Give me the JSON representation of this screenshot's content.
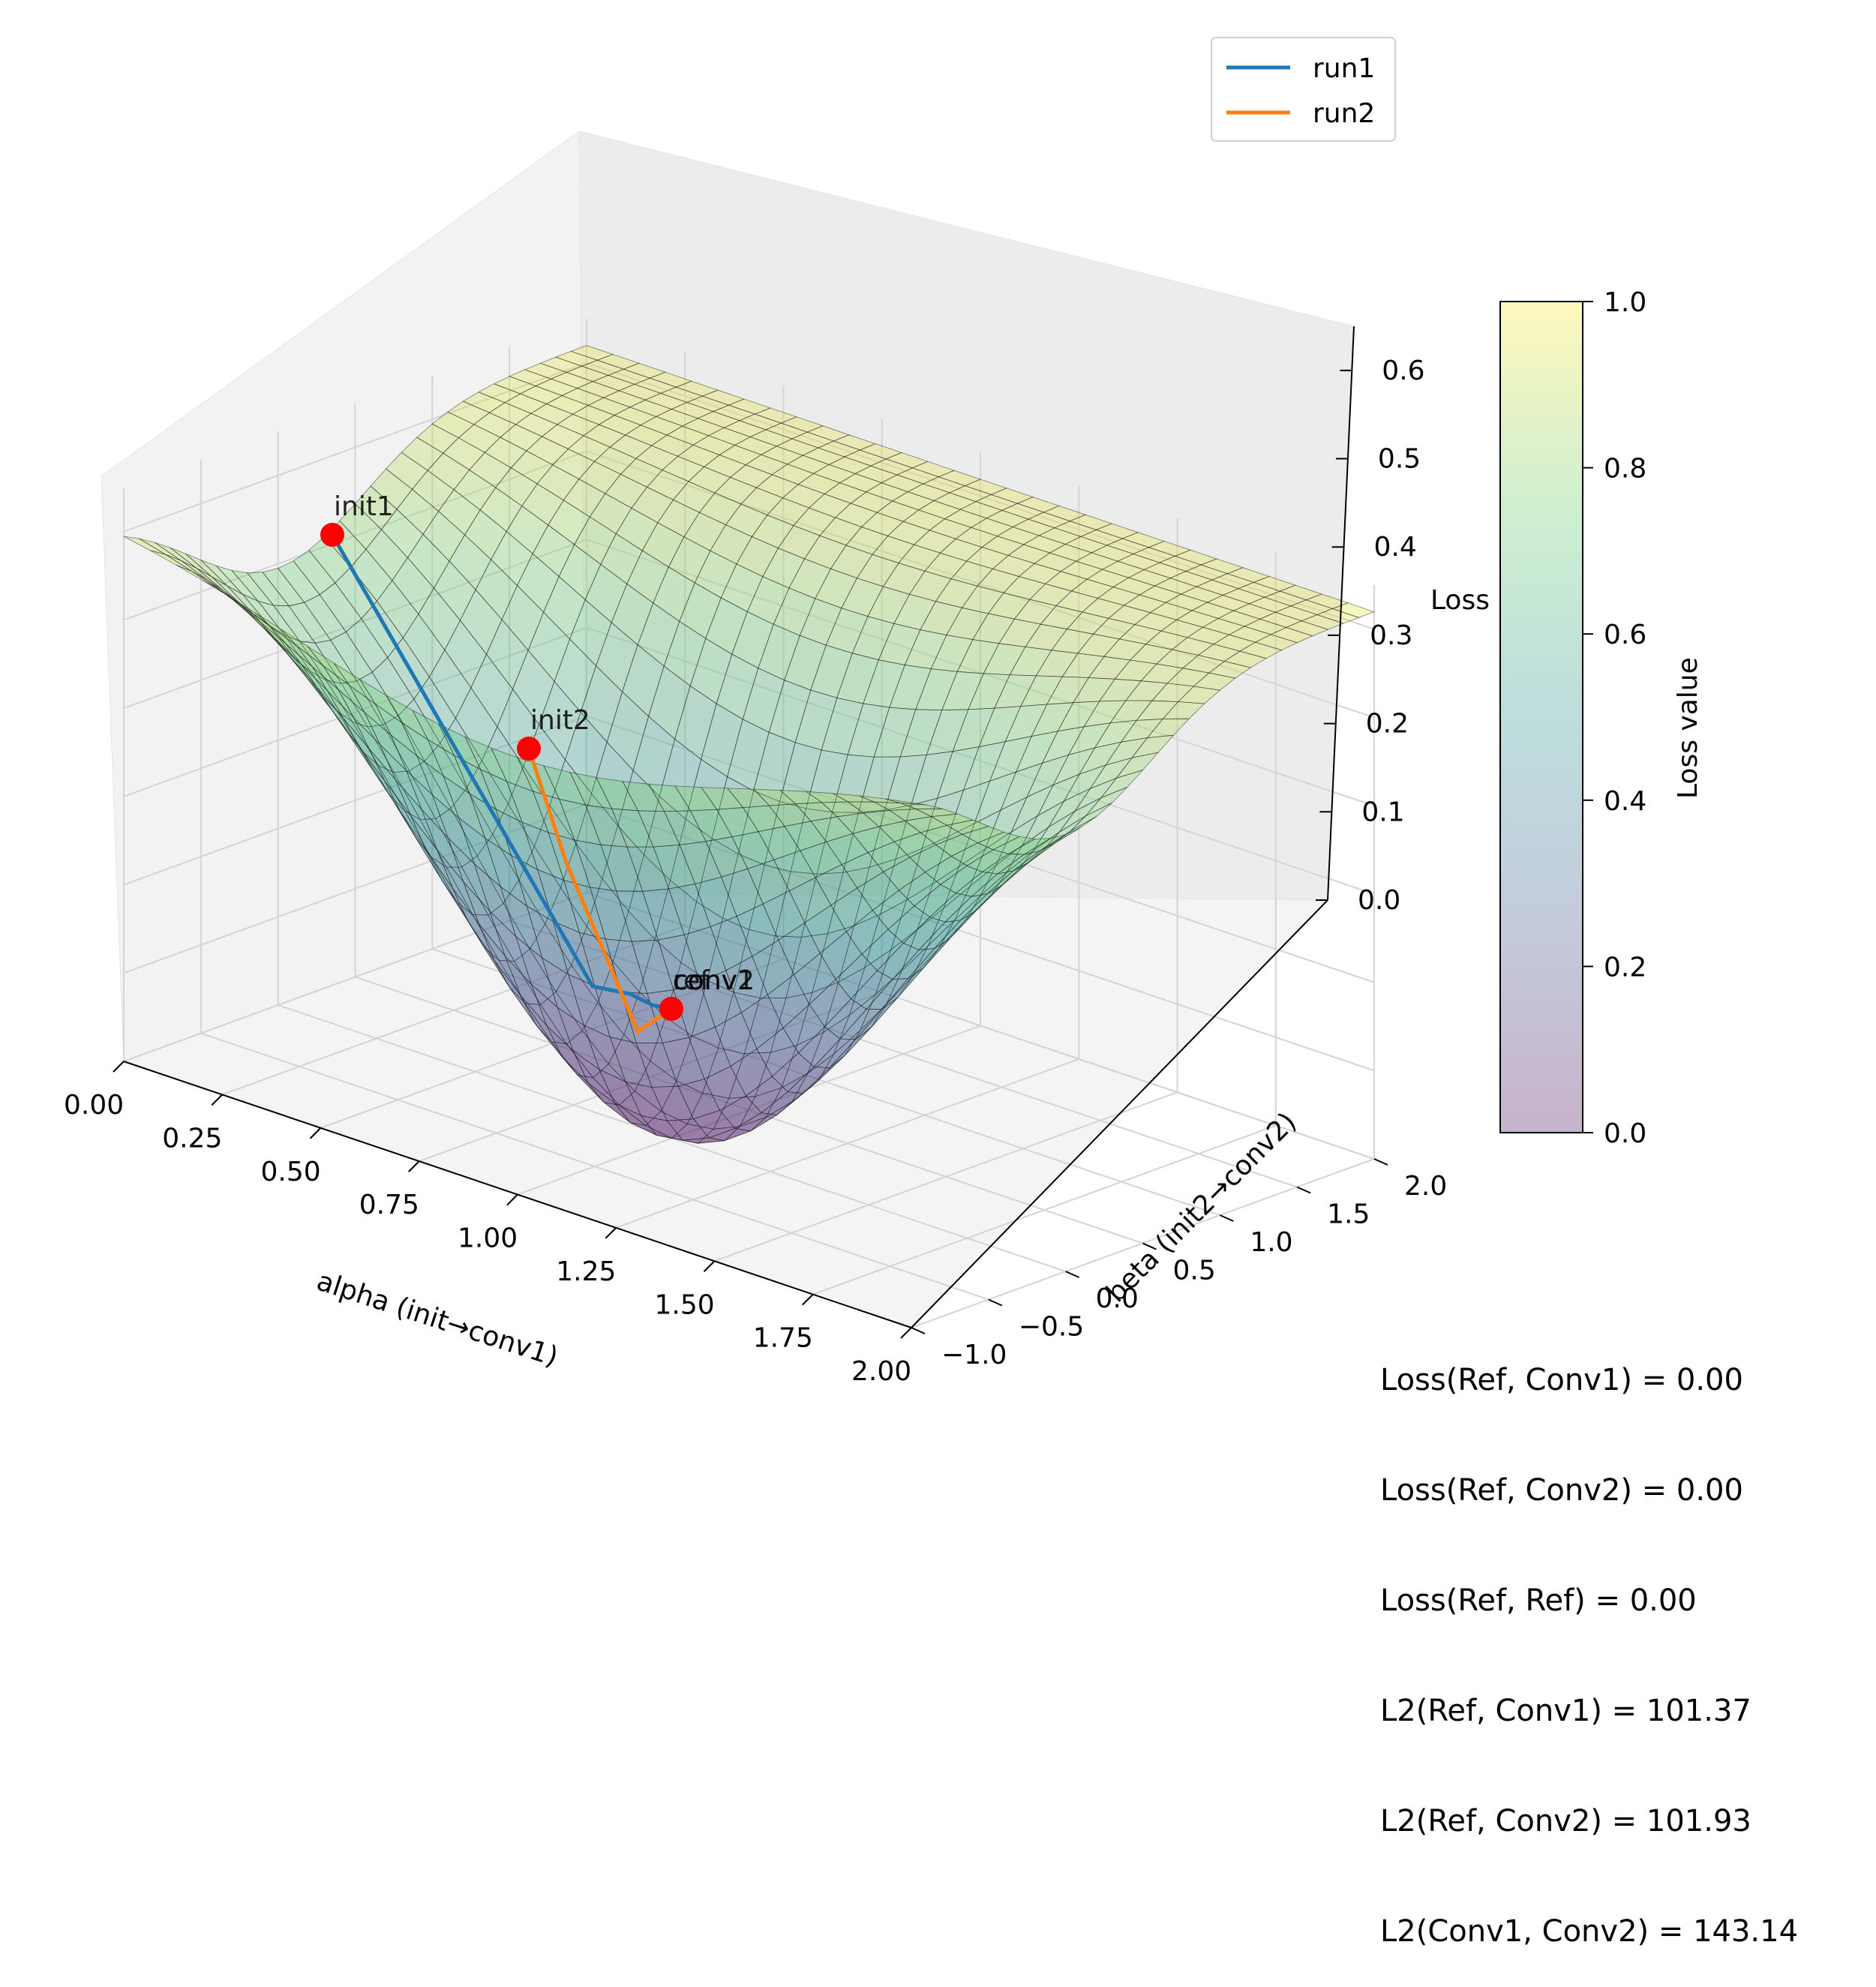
{
  "chart_data": {
    "type": "surface",
    "x_axis": {
      "label": "alpha (init→conv1)",
      "range": [
        0.0,
        2.0
      ],
      "ticks": [
        "0.00",
        "0.25",
        "0.50",
        "0.75",
        "1.00",
        "1.25",
        "1.50",
        "1.75",
        "2.00"
      ]
    },
    "y_axis": {
      "label": "beta (init2→conv2)",
      "range": [
        -1.0,
        2.0
      ],
      "ticks": [
        "−1.0",
        "−0.5",
        "0.0",
        "0.5",
        "1.0",
        "1.5",
        "2.0"
      ]
    },
    "z_axis": {
      "label": "Loss",
      "range": [
        0.0,
        0.65
      ],
      "ticks": [
        "0.0",
        "0.1",
        "0.2",
        "0.3",
        "0.4",
        "0.5",
        "0.6"
      ]
    },
    "colormap": "viridis",
    "colorbar": {
      "label": "Loss value",
      "range": [
        0.0,
        1.0
      ],
      "ticks": [
        "0.0",
        "0.2",
        "0.4",
        "0.6",
        "0.8",
        "1.0"
      ]
    },
    "surface": {
      "description_values": "loss surface with minimum at alpha=1.0, beta=0.0; corners high",
      "min_loss": 0.0,
      "max_loss": 0.62
    },
    "series": [
      {
        "name": "run1",
        "color": "#1f77b4",
        "points": [
          {
            "x": 0.0,
            "y": 0.0,
            "z": 0.52
          },
          {
            "x": 0.9,
            "y": 0.0,
            "z": 0.0
          },
          {
            "x": 0.97,
            "y": 0.0,
            "z": 0.0
          },
          {
            "x": 1.0,
            "y": 0.0,
            "z": 0.0
          }
        ]
      },
      {
        "name": "run2",
        "color": "#ff7f0e",
        "points": [
          {
            "x": 1.0,
            "y": 1.0,
            "z": 0.2
          },
          {
            "x": 1.0,
            "y": 0.05,
            "z": 0.0
          },
          {
            "x": 1.0,
            "y": 0.0,
            "z": 0.0
          }
        ]
      }
    ],
    "annotations": [
      {
        "label": "init1",
        "x": 0.0,
        "y": 0.0,
        "z": 0.52
      },
      {
        "label": "init2",
        "x": 1.0,
        "y": 1.0,
        "z": 0.2
      },
      {
        "label": "ref",
        "x": 1.0,
        "y": 0.0,
        "z": 0.0
      },
      {
        "label": "conv1",
        "x": 1.0,
        "y": 0.0,
        "z": 0.0
      },
      {
        "label": "conv2",
        "x": 1.0,
        "y": 0.0,
        "z": 0.0
      }
    ],
    "legend": {
      "position": "top-center"
    }
  },
  "stats": [
    "Loss(Ref, Conv1) = 0.00",
    "Loss(Ref, Conv2) = 0.00",
    "Loss(Ref, Ref) = 0.00",
    "L2(Ref, Conv1) = 101.37",
    "L2(Ref, Conv2) = 101.93",
    "L2(Conv1, Conv2) = 143.14"
  ]
}
